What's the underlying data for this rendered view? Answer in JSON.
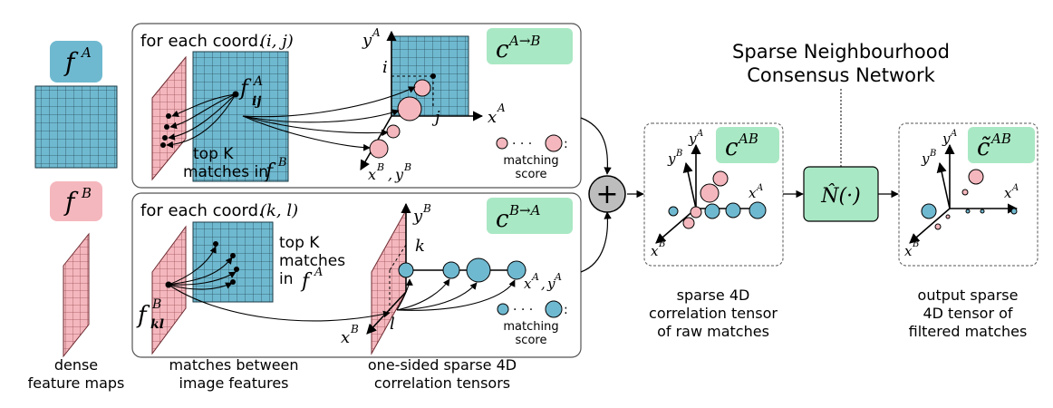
{
  "left": {
    "fA": "f",
    "fA_sup": "A",
    "fB": "f",
    "fB_sup": "B",
    "caption": [
      "dense",
      "feature maps"
    ]
  },
  "top_panel": {
    "header": "for each coord.",
    "coord": "(i, j)",
    "badge": "c",
    "badge_sup": "A→B",
    "f_label": "f",
    "f_sup": "A",
    "f_sub": "ij",
    "topk": [
      "top K",
      "matches in"
    ],
    "topk_f": "f",
    "topk_f_sup": "B",
    "axis_y": "y",
    "axis_y_sup": "A",
    "axis_x": "x",
    "axis_x_sup": "A",
    "tick_i": "i",
    "tick_j": "j",
    "corner_axis": "x",
    "corner_axis_sup": "B",
    "corner_axis2": "y",
    "corner_axis2_sup": "B",
    "score_label": [
      "matching",
      "score"
    ]
  },
  "bottom_panel": {
    "header": "for each coord.",
    "coord": "(k, l)",
    "badge": "c",
    "badge_sup": "B→A",
    "f_label": "f",
    "f_sup": "B",
    "f_sub": "kl",
    "topk": [
      "top K",
      "matches",
      "in"
    ],
    "topk_f": "f",
    "topk_f_sup": "A",
    "axis_y": "y",
    "axis_y_sup": "B",
    "axis_x": "x",
    "axis_x_sup": "B",
    "tick_k": "k",
    "tick_l": "l",
    "right_axis": "x",
    "right_axis_sup": "A",
    "right_axis2": "y",
    "right_axis2_sup": "A",
    "score_label": [
      "matching",
      "score"
    ]
  },
  "captions": {
    "matches": [
      "matches between",
      "image features"
    ],
    "onesided": [
      "one-sided sparse 4D",
      "correlation tensors"
    ],
    "sparse": [
      "sparse 4D",
      "correlation tensor",
      "of raw matches"
    ],
    "output": [
      "output sparse",
      "4D tensor of",
      "filtered matches"
    ]
  },
  "sum_symbol": "+",
  "network_title": [
    "Sparse Neighbourhood",
    "Consensus Network"
  ],
  "network_box": "N̂(·)",
  "cAB": "c",
  "cAB_sup": "AB",
  "ctilde": "c̃",
  "ctilde_sup": "AB",
  "axis_labels": {
    "y": "y",
    "yA": "A",
    "yB": "B",
    "x": "x",
    "xA": "A",
    "xB": "B"
  },
  "colors": {
    "blue": "#6fb9d0",
    "pink": "#f4b7bd",
    "green": "#a9e8c4",
    "gray": "#bdbdbd"
  }
}
